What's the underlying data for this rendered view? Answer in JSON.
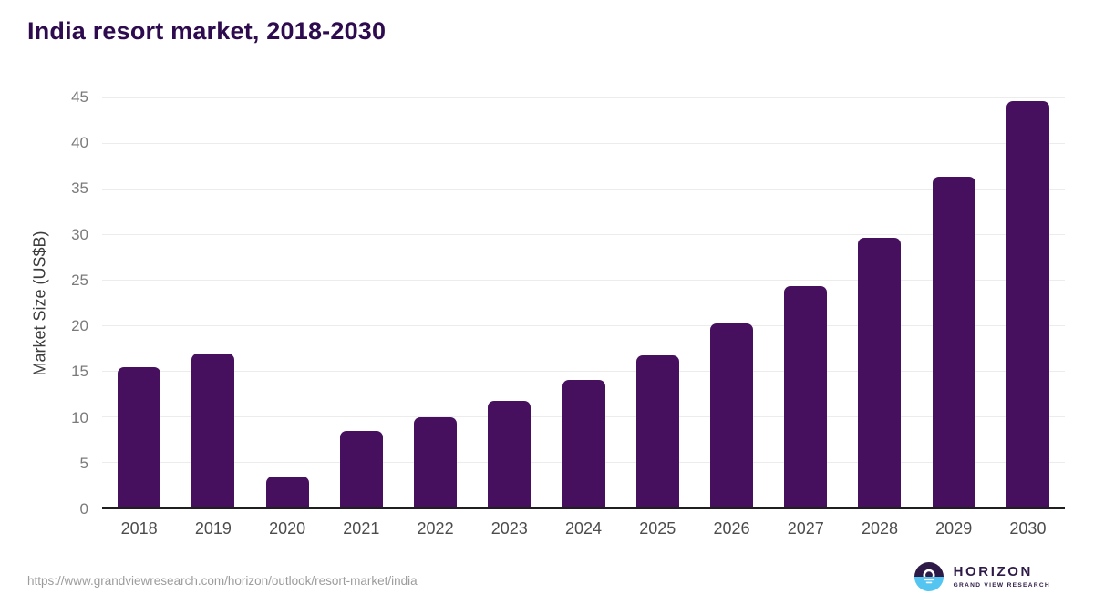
{
  "title": "India resort market, 2018-2030",
  "chart_data": {
    "type": "bar",
    "title": "India resort market, 2018-2030",
    "categories": [
      "2018",
      "2019",
      "2020",
      "2021",
      "2022",
      "2023",
      "2024",
      "2025",
      "2026",
      "2027",
      "2028",
      "2029",
      "2030"
    ],
    "values": [
      15.4,
      16.9,
      3.4,
      8.4,
      9.9,
      11.7,
      14.0,
      16.7,
      20.2,
      24.3,
      29.6,
      36.3,
      44.6
    ],
    "xlabel": "",
    "ylabel": "Market Size (US$B)",
    "ylim": [
      0,
      45
    ],
    "yticks": [
      0,
      5,
      10,
      15,
      20,
      25,
      30,
      35,
      40,
      45
    ],
    "grid": true,
    "legend": false
  },
  "footer": {
    "source_url": "https://www.grandviewresearch.com/horizon/outlook/resort-market/india",
    "brand": "HORIZON",
    "brand_subtitle": "GRAND VIEW RESEARCH"
  },
  "colors": {
    "bar": "#47105e",
    "title_text": "#2d0b4e",
    "gridline": "#ececec",
    "axis_line": "#1f1f1f",
    "tick_text": "#7a7a7a",
    "logo_navy": "#2e1a47",
    "logo_blue": "#54c5f0"
  }
}
